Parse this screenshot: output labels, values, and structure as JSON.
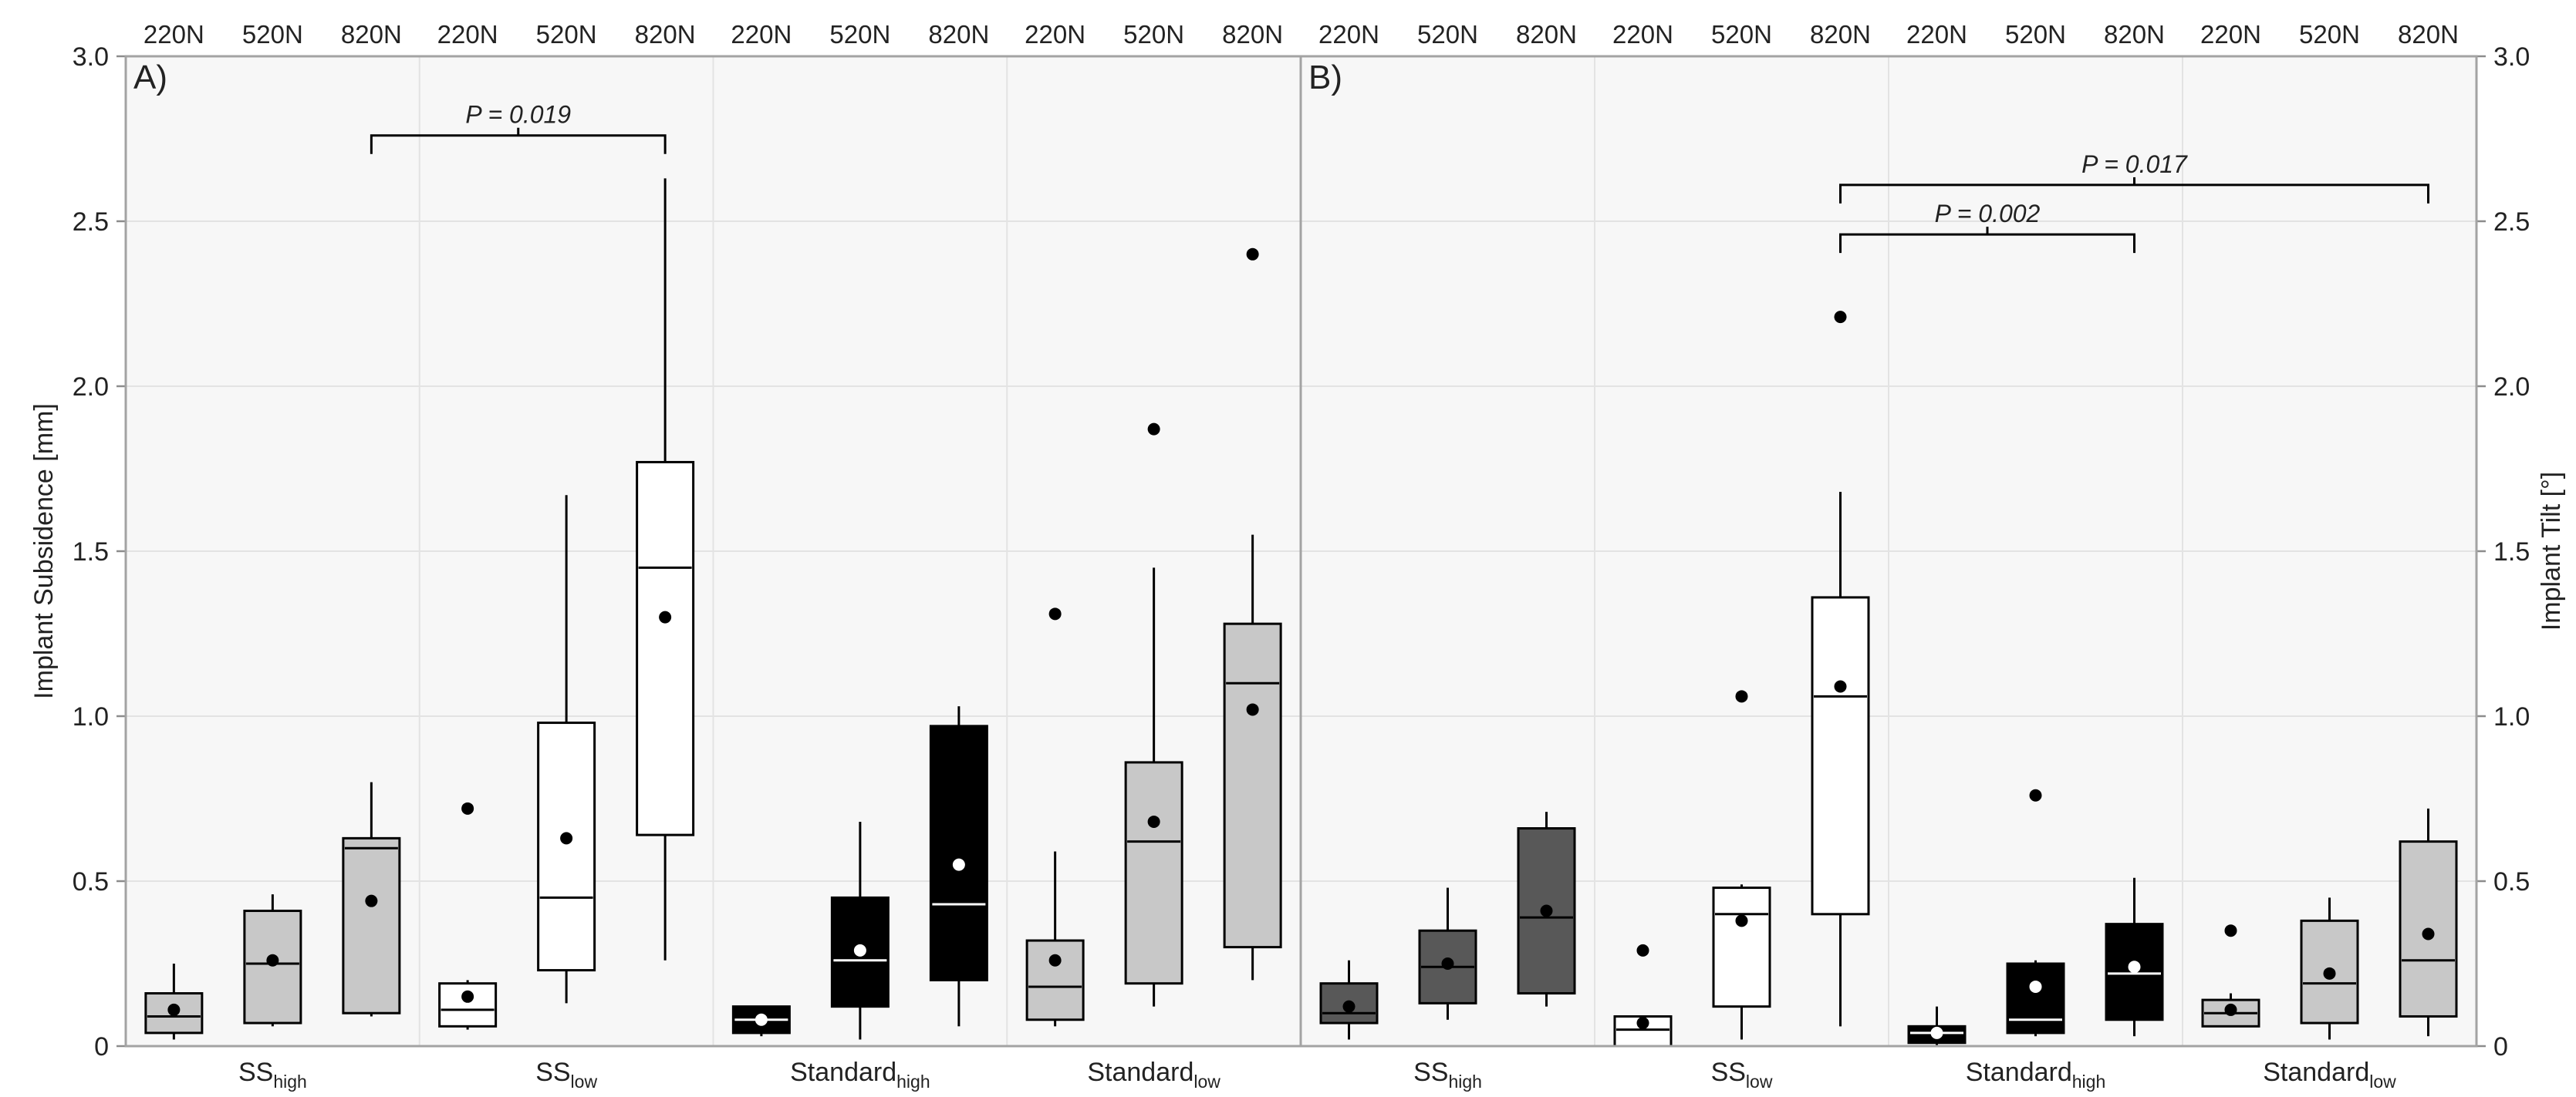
{
  "figure_meta": {
    "condition_labels": [
      "220N",
      "520N",
      "820N"
    ]
  },
  "chart_data": [
    {
      "panel_label": "A)",
      "type": "boxplot",
      "ylabel": "Implant Subsidence  [mm]",
      "ylim": [
        0,
        3.0
      ],
      "yticks": [
        0,
        0.5,
        1.0,
        1.5,
        2.0,
        2.5,
        3.0
      ],
      "ytick_labels": [
        "0",
        "0.5",
        "1.0",
        "1.5",
        "2.0",
        "2.5",
        "3.0"
      ],
      "groups": [
        {
          "name": "SS",
          "sub": "high",
          "fill": "#c8c8c8",
          "median_color": "#000000",
          "mean_color": "#000000",
          "boxes": [
            {
              "condition": "220N",
              "whislo": 0.02,
              "q1": 0.04,
              "med": 0.09,
              "q3": 0.16,
              "whishi": 0.25,
              "mean": 0.11
            },
            {
              "condition": "520N",
              "whislo": 0.06,
              "q1": 0.07,
              "med": 0.25,
              "q3": 0.41,
              "whishi": 0.46,
              "mean": 0.26
            },
            {
              "condition": "820N",
              "whislo": 0.09,
              "q1": 0.1,
              "med": 0.6,
              "q3": 0.63,
              "whishi": 0.8,
              "mean": 0.44
            }
          ]
        },
        {
          "name": "SS",
          "sub": "low",
          "fill": "#ffffff",
          "median_color": "#000000",
          "mean_color": "#000000",
          "boxes": [
            {
              "condition": "220N",
              "whislo": 0.05,
              "q1": 0.06,
              "med": 0.11,
              "q3": 0.19,
              "whishi": 0.2,
              "mean": 0.15,
              "outliers": [
                0.72
              ]
            },
            {
              "condition": "520N",
              "whislo": 0.13,
              "q1": 0.23,
              "med": 0.45,
              "q3": 0.98,
              "whishi": 1.67,
              "mean": 0.63
            },
            {
              "condition": "820N",
              "whislo": 0.26,
              "q1": 0.64,
              "med": 1.45,
              "q3": 1.77,
              "whishi": 2.63,
              "mean": 1.3
            }
          ]
        },
        {
          "name": "Standard",
          "sub": "high",
          "fill": "#000000",
          "median_color": "#ffffff",
          "mean_color": "#ffffff",
          "boxes": [
            {
              "condition": "220N",
              "whislo": 0.03,
              "q1": 0.04,
              "med": 0.08,
              "q3": 0.12,
              "whishi": 0.12,
              "mean": 0.08
            },
            {
              "condition": "520N",
              "whislo": 0.02,
              "q1": 0.12,
              "med": 0.26,
              "q3": 0.45,
              "whishi": 0.68,
              "mean": 0.29
            },
            {
              "condition": "820N",
              "whislo": 0.06,
              "q1": 0.2,
              "med": 0.43,
              "q3": 0.97,
              "whishi": 1.03,
              "mean": 0.55
            }
          ]
        },
        {
          "name": "Standard",
          "sub": "low",
          "fill": "#c8c8c8",
          "median_color": "#000000",
          "mean_color": "#000000",
          "boxes": [
            {
              "condition": "220N",
              "whislo": 0.06,
              "q1": 0.08,
              "med": 0.18,
              "q3": 0.32,
              "whishi": 0.59,
              "mean": 0.26,
              "outliers": [
                1.31
              ]
            },
            {
              "condition": "520N",
              "whislo": 0.12,
              "q1": 0.19,
              "med": 0.62,
              "q3": 0.86,
              "whishi": 1.45,
              "mean": 0.68,
              "outliers": [
                1.87
              ]
            },
            {
              "condition": "820N",
              "whislo": 0.2,
              "q1": 0.3,
              "med": 1.1,
              "q3": 1.28,
              "whishi": 1.55,
              "mean": 1.02,
              "outliers": [
                2.4
              ]
            }
          ]
        }
      ],
      "annotations": [
        {
          "text": "P = 0.019",
          "from": [
            0,
            2
          ],
          "to": [
            1,
            2
          ],
          "y": 2.76
        }
      ]
    },
    {
      "panel_label": "B)",
      "type": "boxplot",
      "ylabel": "Implant Tilt [°]",
      "ylim": [
        0,
        3.0
      ],
      "yticks": [
        0,
        0.5,
        1.0,
        1.5,
        2.0,
        2.5,
        3.0
      ],
      "ytick_labels": [
        "0",
        "0.5",
        "1.0",
        "1.5",
        "2.0",
        "2.5",
        "3.0"
      ],
      "groups": [
        {
          "name": "SS",
          "sub": "high",
          "fill": "#585858",
          "median_color": "#000000",
          "mean_color": "#000000",
          "boxes": [
            {
              "condition": "220N",
              "whislo": 0.02,
              "q1": 0.07,
              "med": 0.1,
              "q3": 0.19,
              "whishi": 0.26,
              "mean": 0.12
            },
            {
              "condition": "520N",
              "whislo": 0.08,
              "q1": 0.13,
              "med": 0.24,
              "q3": 0.35,
              "whishi": 0.48,
              "mean": 0.25
            },
            {
              "condition": "820N",
              "whislo": 0.12,
              "q1": 0.16,
              "med": 0.39,
              "q3": 0.66,
              "whishi": 0.71,
              "mean": 0.41
            }
          ]
        },
        {
          "name": "SS",
          "sub": "low",
          "fill": "#ffffff",
          "median_color": "#000000",
          "mean_color": "#000000",
          "boxes": [
            {
              "condition": "220N",
              "whislo": 0.0,
              "q1": 0.0,
              "med": 0.05,
              "q3": 0.09,
              "whishi": 0.09,
              "mean": 0.07,
              "outliers": [
                0.29
              ]
            },
            {
              "condition": "520N",
              "whislo": 0.02,
              "q1": 0.12,
              "med": 0.4,
              "q3": 0.48,
              "whishi": 0.49,
              "mean": 0.38,
              "outliers": [
                1.06
              ]
            },
            {
              "condition": "820N",
              "whislo": 0.06,
              "q1": 0.4,
              "med": 1.06,
              "q3": 1.36,
              "whishi": 1.68,
              "mean": 1.09,
              "outliers": [
                2.21
              ]
            }
          ]
        },
        {
          "name": "Standard",
          "sub": "high",
          "fill": "#000000",
          "median_color": "#ffffff",
          "mean_color": "#ffffff",
          "boxes": [
            {
              "condition": "220N",
              "whislo": 0.0,
              "q1": 0.01,
              "med": 0.04,
              "q3": 0.06,
              "whishi": 0.12,
              "mean": 0.04
            },
            {
              "condition": "520N",
              "whislo": 0.03,
              "q1": 0.04,
              "med": 0.08,
              "q3": 0.25,
              "whishi": 0.26,
              "mean": 0.18,
              "outliers": [
                0.76
              ]
            },
            {
              "condition": "820N",
              "whislo": 0.03,
              "q1": 0.08,
              "med": 0.22,
              "q3": 0.37,
              "whishi": 0.51,
              "mean": 0.24
            }
          ]
        },
        {
          "name": "Standard",
          "sub": "low",
          "fill": "#c8c8c8",
          "median_color": "#000000",
          "mean_color": "#000000",
          "boxes": [
            {
              "condition": "220N",
              "whislo": 0.06,
              "q1": 0.06,
              "med": 0.1,
              "q3": 0.14,
              "whishi": 0.16,
              "mean": 0.11,
              "outliers": [
                0.35
              ]
            },
            {
              "condition": "520N",
              "whislo": 0.02,
              "q1": 0.07,
              "med": 0.19,
              "q3": 0.38,
              "whishi": 0.45,
              "mean": 0.22
            },
            {
              "condition": "820N",
              "whislo": 0.03,
              "q1": 0.09,
              "med": 0.26,
              "q3": 0.62,
              "whishi": 0.72,
              "mean": 0.34
            }
          ]
        }
      ],
      "annotations": [
        {
          "text": "P = 0.002",
          "from": [
            1,
            2
          ],
          "to": [
            2,
            2
          ],
          "y": 2.46
        },
        {
          "text": "P = 0.017",
          "from": [
            1,
            2
          ],
          "to": [
            3,
            2
          ],
          "y": 2.61
        }
      ]
    }
  ]
}
